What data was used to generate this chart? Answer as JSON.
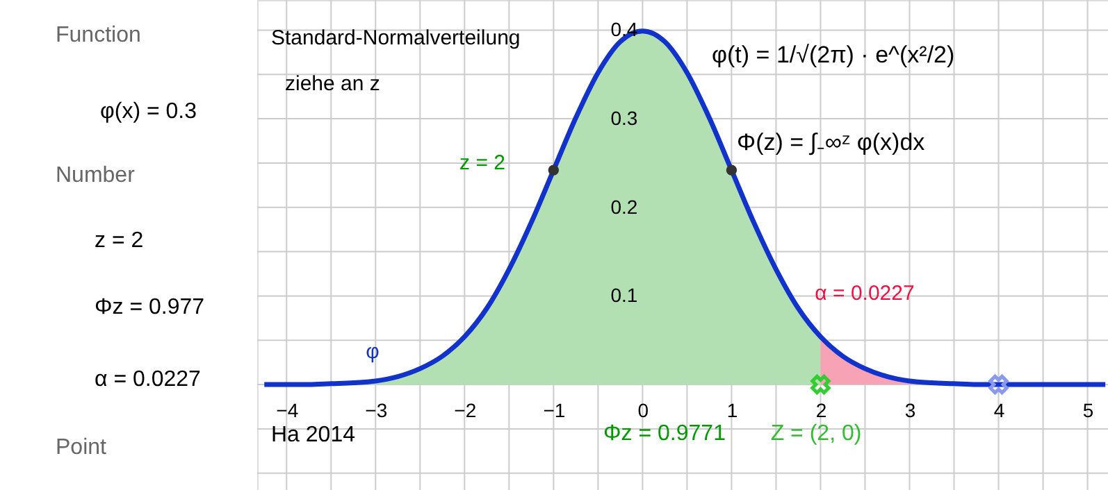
{
  "chart_data": {
    "type": "area",
    "xlim": [
      -4.33,
      5.23
    ],
    "ylim": [
      -0.119,
      0.434
    ],
    "xticks": [
      {
        "value": -4,
        "label": "−4"
      },
      {
        "value": -3.5,
        "label": null
      },
      {
        "value": -3,
        "label": "−3"
      },
      {
        "value": -2.5,
        "label": null
      },
      {
        "value": -2,
        "label": "−2"
      },
      {
        "value": -1.5,
        "label": null
      },
      {
        "value": -1,
        "label": "−1"
      },
      {
        "value": -0.5,
        "label": null
      },
      0,
      {
        "value": 0.5,
        "label": null
      },
      1,
      {
        "value": 1.5,
        "label": null
      },
      2,
      {
        "value": 2.5,
        "label": null
      },
      3,
      {
        "value": 3.5,
        "label": null
      },
      4,
      {
        "value": 4.5,
        "label": null
      },
      5
    ],
    "yticks": [
      {
        "value": -0.1,
        "label": null
      },
      {
        "value": -0.05,
        "label": null
      },
      {
        "value": 0,
        "label": null
      },
      {
        "value": 0.05,
        "label": null
      },
      0.1,
      {
        "value": 0.15,
        "label": null
      },
      0.2,
      {
        "value": 0.25,
        "label": null
      },
      0.3,
      {
        "value": 0.35,
        "label": null
      },
      0.4
    ],
    "grid": true,
    "series": [
      {
        "color": "#b3e0b3",
        "x": [
          -4.25,
          -4,
          -3.75,
          -3.5,
          -3.25,
          -3,
          -2.75,
          -2.5,
          -2.25,
          -2,
          -1.75,
          -1.5,
          -1.25,
          -1,
          -0.75,
          -0.5,
          -0.25,
          0,
          0.25,
          0.5,
          0.75,
          1,
          1.25,
          1.5,
          1.75,
          2
        ],
        "values": [
          0.0,
          0.0,
          0.0,
          0.001,
          0.002,
          0.004,
          0.009,
          0.018,
          0.032,
          0.054,
          0.086,
          0.13,
          0.183,
          0.242,
          0.301,
          0.352,
          0.387,
          0.399,
          0.387,
          0.352,
          0.301,
          0.242,
          0.183,
          0.13,
          0.086,
          0.054
        ]
      },
      {
        "color": "#f7a3b5",
        "x": [
          2,
          2.25,
          2.5,
          2.75,
          3,
          3.25,
          3.5,
          3.75,
          4,
          4.25,
          4.5,
          4.75,
          5,
          5.2
        ],
        "values": [
          0.054,
          0.032,
          0.018,
          0.009,
          0.004,
          0.002,
          0.001,
          0.0,
          0.0,
          0.0,
          0.0,
          0.0,
          0.0,
          0.0
        ]
      },
      {
        "type": "line",
        "color": "#1133cc",
        "x": [
          -4.25,
          -4,
          -3.75,
          -3.5,
          -3.25,
          -3,
          -2.75,
          -2.5,
          -2.25,
          -2,
          -1.75,
          -1.5,
          -1.25,
          -1,
          -0.75,
          -0.5,
          -0.25,
          0,
          0.25,
          0.5,
          0.75,
          1,
          1.25,
          1.5,
          1.75,
          2,
          2.25,
          2.5,
          2.75,
          3,
          3.25,
          3.5,
          3.75,
          4,
          4.25,
          4.5,
          4.75,
          5,
          5.2
        ],
        "values": [
          0.0,
          0.0,
          0.0,
          0.001,
          0.002,
          0.004,
          0.009,
          0.018,
          0.032,
          0.054,
          0.086,
          0.13,
          0.183,
          0.242,
          0.301,
          0.352,
          0.387,
          0.399,
          0.387,
          0.352,
          0.301,
          0.242,
          0.183,
          0.13,
          0.086,
          0.054,
          0.032,
          0.018,
          0.009,
          0.004,
          0.002,
          0.001,
          0.0,
          0.0,
          0.0,
          0.0,
          0.0,
          0.0,
          0.0
        ]
      },
      {
        "type": "scatter",
        "marker": "circle",
        "color": "#333333",
        "x": [
          -1,
          1
        ],
        "values": [
          0.242,
          0.242
        ]
      },
      {
        "type": "scatter",
        "marker": "cross",
        "color": "#33cc33",
        "x": [
          2
        ],
        "values": [
          0
        ]
      },
      {
        "type": "scatter",
        "marker": "cross",
        "color": "#8899ee",
        "x": [
          4
        ],
        "values": [
          0
        ]
      }
    ],
    "annotations": [
      "Function",
      "φ(x) = 0.3",
      "Number",
      "z = 2",
      "Φz = 0.977",
      "α = 0.0227",
      "Point",
      "Standard-Normalverteilung",
      "ziehe an z",
      "φ(t) = 1/√(2π) · e^(x²/2)",
      "Φ(z) = ∫₋∞ᶻ φ(x)dx",
      "z = 2",
      "α = 0.0227",
      "φ",
      "Ha 2014",
      "Φz = 0.9771",
      "Z = (2, 0)"
    ]
  }
}
